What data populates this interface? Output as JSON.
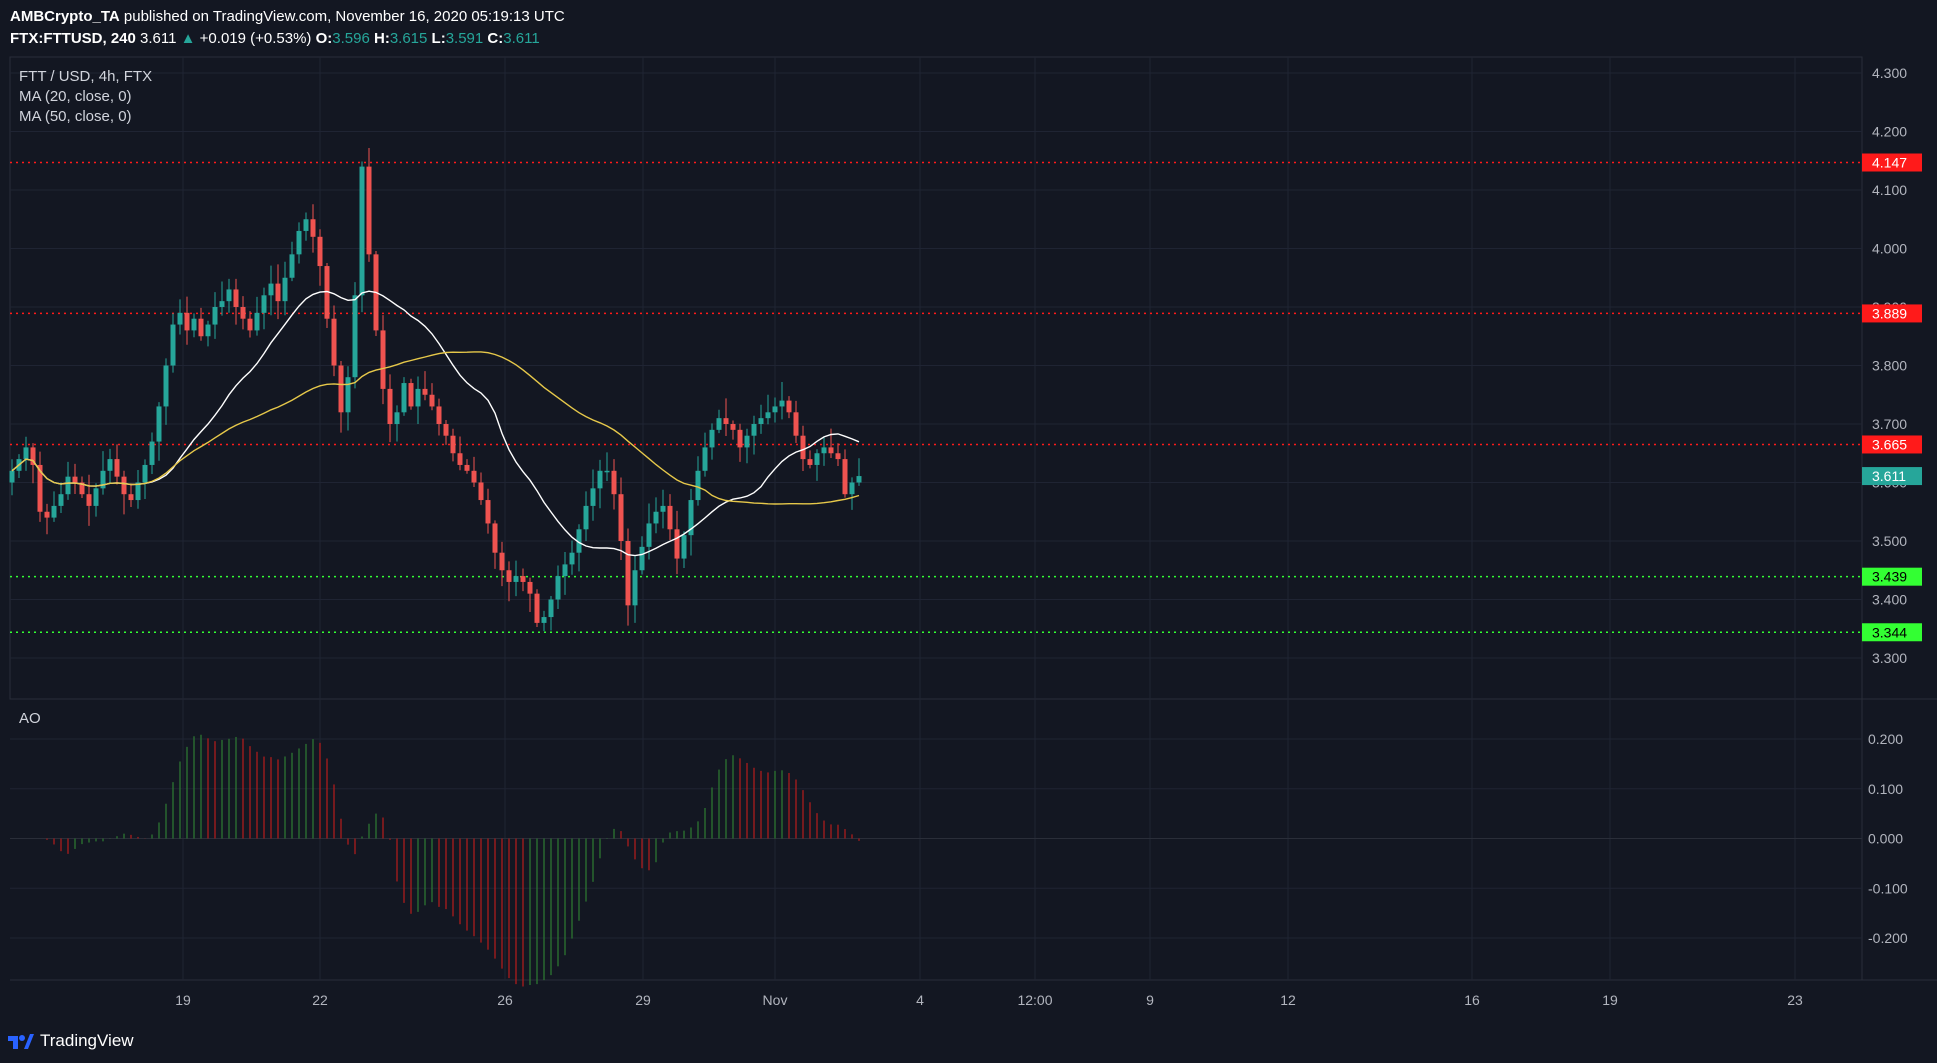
{
  "header": {
    "publisher": "AMBCrypto_TA",
    "publish_text": "published on TradingView.com, November 16, 2020 05:19:13 UTC",
    "symbol": "FTX:FTTUSD, 240",
    "last_price": "3.611",
    "change_arrow": "▲",
    "change": "+0.019 (+0.53%)",
    "o_label": "O:",
    "o_value": "3.596",
    "h_label": "H:",
    "h_value": "3.615",
    "l_label": "L:",
    "l_value": "3.591",
    "c_label": "C:",
    "c_value": "3.611"
  },
  "legend": {
    "title": "FTT / USD, 4h, FTX",
    "ma20": "MA (20, close, 0)",
    "ma50": "MA (50, close, 0)",
    "ao": "AO"
  },
  "colors": {
    "background": "#131722",
    "up": "#26a69a",
    "down": "#ef5350",
    "ma20": "#ffffff",
    "ma50": "#e6c84a",
    "resistance": "#ff1a1a",
    "support": "#33ff33",
    "grid": "#1f2433",
    "ao_up": "#2e7d32",
    "ao_down": "#b71c1c"
  },
  "chart_data": {
    "type": "candlestick",
    "title": "FTT / USD, 4h, FTX",
    "price_axis": {
      "ylim": [
        3.22,
        4.32
      ],
      "ticks": [
        "4.300",
        "4.200",
        "4.100",
        "4.000",
        "3.900",
        "3.800",
        "3.700",
        "3.600",
        "3.500",
        "3.400",
        "3.300"
      ]
    },
    "time_axis": {
      "ticks": [
        "19",
        "22",
        "26",
        "29",
        "Nov",
        "4",
        "12:00",
        "9",
        "12",
        "16",
        "19",
        "23"
      ],
      "tick_dates": [
        "2020-10-19",
        "2020-10-22",
        "2020-10-26",
        "2020-10-29",
        "2020-11-01",
        "2020-11-04",
        "2020-11-06 12:00",
        "2020-11-09",
        "2020-11-12",
        "2020-11-16",
        "2020-11-19",
        "2020-11-23"
      ]
    },
    "horizontal_levels": [
      {
        "label": "4.147",
        "value": 4.147,
        "kind": "resistance"
      },
      {
        "label": "3.889",
        "value": 3.889,
        "kind": "resistance"
      },
      {
        "label": "3.665",
        "value": 3.665,
        "kind": "resistance"
      },
      {
        "label": "3.439",
        "value": 3.439,
        "kind": "support"
      },
      {
        "label": "3.344",
        "value": 3.344,
        "kind": "support"
      }
    ],
    "last_price_label": "3.611",
    "candle_interval": "4h",
    "close_series": [
      [
        3.62,
        3.64,
        3.66,
        3.63,
        3.55,
        3.54,
        3.56,
        3.58,
        3.61,
        3.6
      ],
      [
        3.58,
        3.56,
        3.59,
        3.62,
        3.64,
        3.61,
        3.58,
        3.57,
        3.6,
        3.63
      ],
      [
        3.67,
        3.73,
        3.8,
        3.87,
        3.89,
        3.86,
        3.88,
        3.85,
        3.87,
        3.9
      ],
      [
        3.91,
        3.93,
        3.9,
        3.88,
        3.86,
        3.89,
        3.92,
        3.94,
        3.91,
        3.95
      ],
      [
        3.99,
        4.03,
        4.05,
        4.02,
        3.97,
        3.88,
        3.8,
        3.72,
        3.78,
        3.92
      ],
      [
        4.14,
        3.99,
        3.86,
        3.76,
        3.7,
        3.72,
        3.77,
        3.73,
        3.76,
        3.75
      ],
      [
        3.73,
        3.7,
        3.68,
        3.65,
        3.63,
        3.62,
        3.6,
        3.57,
        3.53,
        3.48
      ],
      [
        3.45,
        3.43,
        3.44,
        3.43,
        3.41,
        3.36,
        3.37,
        3.4,
        3.44,
        3.46
      ],
      [
        3.48,
        3.52,
        3.56,
        3.59,
        3.62,
        3.62,
        3.58,
        3.5,
        3.39,
        3.45
      ],
      [
        3.49,
        3.53,
        3.55,
        3.56,
        3.52,
        3.47,
        3.51,
        3.57,
        3.62,
        3.66
      ],
      [
        3.69,
        3.71,
        3.7,
        3.69,
        3.66,
        3.68,
        3.7,
        3.71,
        3.72,
        3.73
      ],
      [
        3.74,
        3.72,
        3.68,
        3.64,
        3.63,
        3.65,
        3.66,
        3.65,
        3.64,
        3.58
      ],
      [
        3.6,
        3.611
      ]
    ],
    "series": [
      {
        "name": "MA (20, close, 0)",
        "color": "#ffffff"
      },
      {
        "name": "MA (50, close, 0)",
        "color": "#e6c84a"
      }
    ],
    "ao_panel": {
      "title": "AO",
      "ylim": [
        -0.26,
        0.26
      ],
      "ticks": [
        "0.200",
        "0.100",
        "0.000",
        "-0.100",
        "-0.200"
      ]
    }
  },
  "branding": {
    "logo_text": "TradingView"
  }
}
